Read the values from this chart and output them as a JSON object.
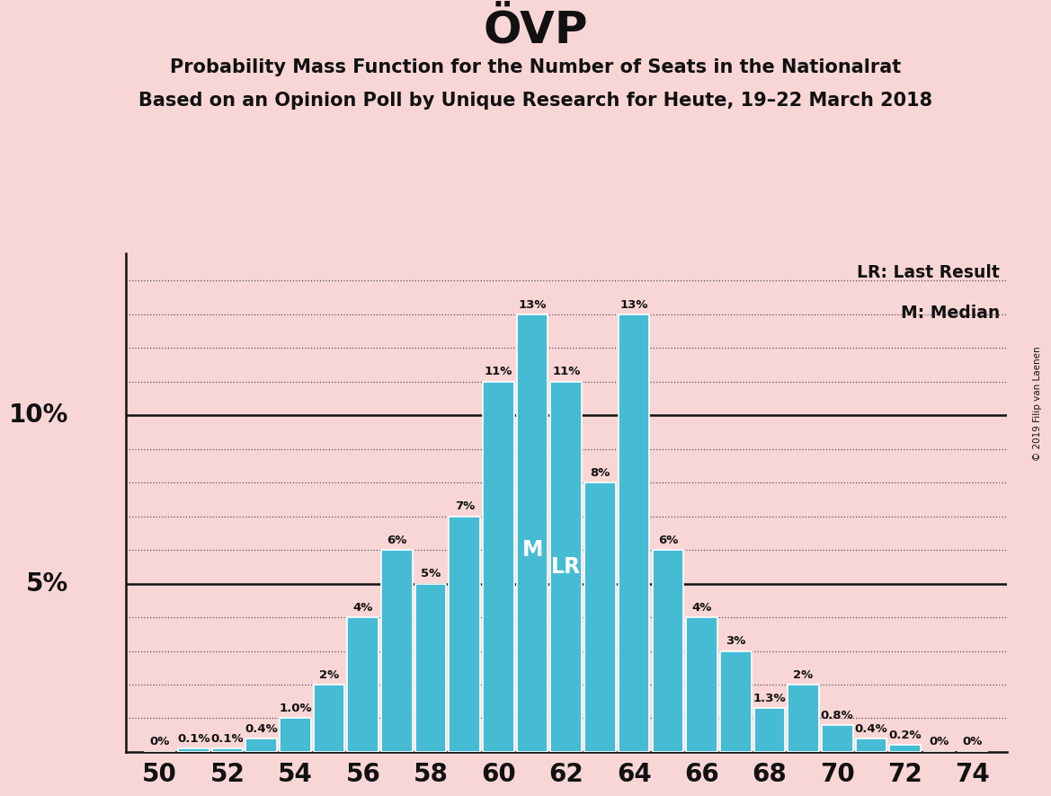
{
  "title": "ÖVP",
  "subtitle1": "Probability Mass Function for the Number of Seats in the Nationalrat",
  "subtitle2": "Based on an Opinion Poll by Unique Research for Heute, 19–22 March 2018",
  "copyright": "© 2019 Filip van Laenen",
  "seats": [
    50,
    51,
    52,
    53,
    54,
    55,
    56,
    57,
    58,
    59,
    60,
    61,
    62,
    63,
    64,
    65,
    66,
    67,
    68,
    69,
    70,
    71,
    72,
    73,
    74
  ],
  "probabilities": [
    0.0,
    0.1,
    0.1,
    0.4,
    1.0,
    2.0,
    4.0,
    6.0,
    5.0,
    7.0,
    11.0,
    13.0,
    11.0,
    8.0,
    13.0,
    6.0,
    4.0,
    3.0,
    1.3,
    2.0,
    0.8,
    0.4,
    0.2,
    0.0,
    0.0
  ],
  "labels": [
    "0%",
    "0.1%",
    "0.1%",
    "0.4%",
    "1.0%",
    "2%",
    "4%",
    "6%",
    "5%",
    "7%",
    "11%",
    "13%",
    "11%",
    "8%",
    "13%",
    "6%",
    "4%",
    "3%",
    "1.3%",
    "2%",
    "0.8%",
    "0.4%",
    "0.2%",
    "0%",
    "0%"
  ],
  "bar_color": "#45bcd4",
  "background_color": "#f9d6d6",
  "median_seat": 61,
  "lr_seat": 62,
  "legend_lr": "LR: Last Result",
  "legend_m": "M: Median",
  "xlabel_seats": [
    50,
    52,
    54,
    56,
    58,
    60,
    62,
    64,
    66,
    68,
    70,
    72,
    74
  ],
  "ylim": [
    0,
    14.8
  ],
  "solid_lines": [
    5,
    10
  ],
  "dotted_lines": [
    1,
    2,
    3,
    4,
    6,
    7,
    8,
    9,
    11,
    12,
    13,
    14
  ]
}
